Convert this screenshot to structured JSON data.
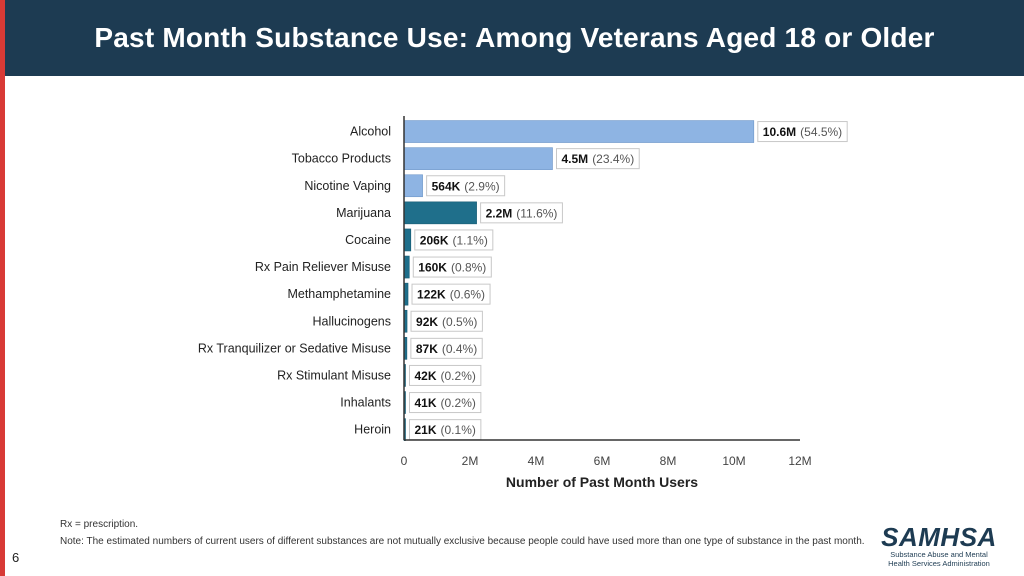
{
  "header": {
    "title": "Past Month Substance Use: Among Veterans Aged 18 or Older"
  },
  "chart_data": {
    "type": "bar",
    "orientation": "horizontal",
    "title": "Past Month Substance Use: Among Veterans Aged 18 or Older",
    "xlabel": "Number of Past Month Users",
    "ylabel": "",
    "xlim": [
      0,
      12000000
    ],
    "x_ticks": [
      0,
      2000000,
      4000000,
      6000000,
      8000000,
      10000000,
      12000000
    ],
    "x_tick_labels": [
      "0",
      "2M",
      "4M",
      "6M",
      "8M",
      "10M",
      "12M"
    ],
    "grid": false,
    "categories": [
      "Alcohol",
      "Tobacco Products",
      "Nicotine Vaping",
      "Marijuana",
      "Cocaine",
      "Rx Pain Reliever Misuse",
      "Methamphetamine",
      "Hallucinogens",
      "Rx Tranquilizer or Sedative Misuse",
      "Rx Stimulant Misuse",
      "Inhalants",
      "Heroin"
    ],
    "values": [
      10600000,
      4500000,
      564000,
      2200000,
      206000,
      160000,
      122000,
      92000,
      87000,
      42000,
      41000,
      21000
    ],
    "value_labels": [
      "10.6M",
      "4.5M",
      "564K",
      "2.2M",
      "206K",
      "160K",
      "122K",
      "92K",
      "87K",
      "42K",
      "41K",
      "21K"
    ],
    "percent_labels": [
      "(54.5%)",
      "(23.4%)",
      "(2.9%)",
      "(11.6%)",
      "(1.1%)",
      "(0.8%)",
      "(0.6%)",
      "(0.5%)",
      "(0.4%)",
      "(0.2%)",
      "(0.2%)",
      "(0.1%)"
    ],
    "bar_colors": [
      "#8eb4e3",
      "#8eb4e3",
      "#8eb4e3",
      "#1f6f8b",
      "#1f6f8b",
      "#1f6f8b",
      "#1f6f8b",
      "#1f6f8b",
      "#1f6f8b",
      "#1f6f8b",
      "#1f6f8b",
      "#1f6f8b"
    ]
  },
  "footnotes": {
    "abbreviation": "Rx = prescription.",
    "note": "Note: The estimated numbers of current users of different substances are not mutually exclusive because people could have used more than one type of substance in the past month."
  },
  "page_number": "6",
  "logo": {
    "wordmark": "SAMHSA",
    "subtitle": "Substance Abuse and Mental Health Services Administration"
  },
  "colors": {
    "header_bg": "#1d3b52",
    "accent_red": "#d83a36",
    "bar_light": "#8eb4e3",
    "bar_dark": "#1f6f8b"
  }
}
